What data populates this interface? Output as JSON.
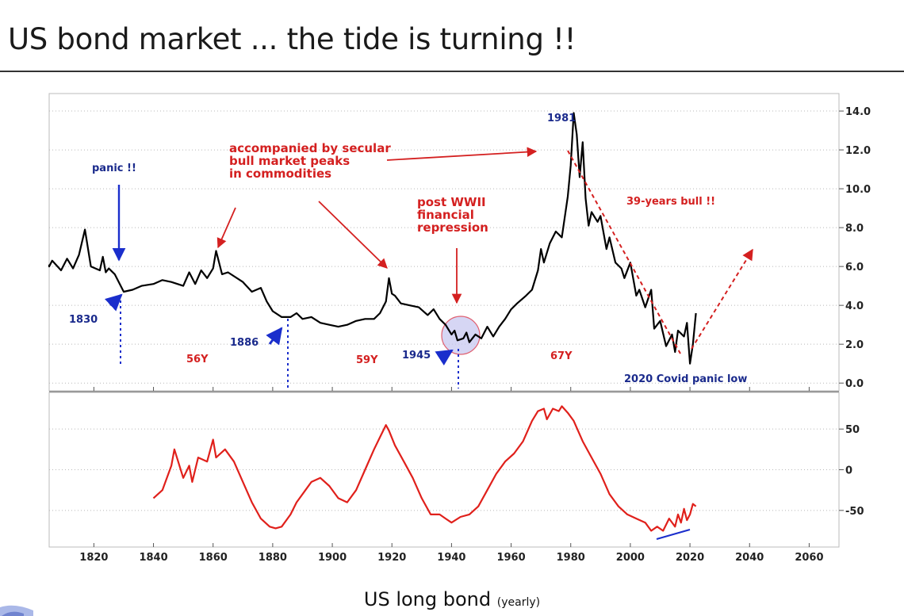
{
  "title": "US bond market ... the tide is turning !!",
  "caption": {
    "main": "US long bond",
    "sub": "(yearly)"
  },
  "colors": {
    "price_line": "#000000",
    "osc_line": "#e0201b",
    "blue": "#1a2ecc",
    "annotation_blue": "#1a2a8c",
    "annotation_red": "#d42020",
    "grid": "#b8b8b8",
    "highlight": "#c8c8f0"
  },
  "chart_data": [
    {
      "type": "line",
      "title": "",
      "xlim": [
        1805,
        2070
      ],
      "ylim": [
        -0.4,
        14.9
      ],
      "y_ticks": [
        "0.0",
        "2.0",
        "4.0",
        "6.0",
        "8.0",
        "10.0",
        "12.0",
        "14.0"
      ],
      "grid": true,
      "series": [
        {
          "x": [
            1800,
            1803,
            1806,
            1809,
            1811,
            1813,
            1815,
            1817,
            1819,
            1822,
            1823,
            1824,
            1825,
            1827,
            1830,
            1833,
            1836,
            1840,
            1843,
            1846,
            1850,
            1852,
            1854,
            1856,
            1858,
            1860,
            1861,
            1863,
            1865,
            1870,
            1873,
            1876,
            1878,
            1880,
            1883,
            1886,
            1888,
            1890,
            1893,
            1896,
            1899,
            1902,
            1905,
            1908,
            1911,
            1914,
            1916,
            1918,
            1919,
            1920,
            1921,
            1923,
            1926,
            1929,
            1932,
            1934,
            1936,
            1938,
            1940,
            1941,
            1942,
            1944,
            1945,
            1946,
            1948,
            1950,
            1952,
            1954,
            1956,
            1958,
            1960,
            1962,
            1965,
            1967,
            1969,
            1970,
            1971,
            1973,
            1975,
            1977,
            1979,
            1980,
            1981,
            1982,
            1983,
            1984,
            1985,
            1986,
            1987,
            1989,
            1990,
            1992,
            1993,
            1995,
            1997,
            1998,
            2000,
            2002,
            2003,
            2005,
            2007,
            2008,
            2010,
            2012,
            2014,
            2015,
            2016,
            2018,
            2019,
            2020,
            2021,
            2022
          ],
          "values": [
            6.1,
            6.0,
            6.3,
            5.8,
            6.4,
            5.9,
            6.6,
            7.9,
            6.0,
            5.8,
            6.5,
            5.7,
            5.9,
            5.6,
            4.7,
            4.8,
            5.0,
            5.1,
            5.3,
            5.2,
            5.0,
            5.7,
            5.1,
            5.8,
            5.4,
            5.9,
            6.8,
            5.6,
            5.7,
            5.2,
            4.7,
            4.9,
            4.2,
            3.7,
            3.4,
            3.4,
            3.6,
            3.3,
            3.4,
            3.1,
            3.0,
            2.9,
            3.0,
            3.2,
            3.3,
            3.3,
            3.6,
            4.2,
            5.4,
            4.6,
            4.5,
            4.1,
            4.0,
            3.9,
            3.5,
            3.8,
            3.3,
            3.0,
            2.5,
            2.7,
            2.2,
            2.3,
            2.6,
            2.1,
            2.5,
            2.3,
            2.9,
            2.4,
            2.9,
            3.3,
            3.8,
            4.1,
            4.5,
            4.8,
            5.8,
            6.9,
            6.2,
            7.2,
            7.8,
            7.5,
            9.6,
            11.2,
            13.9,
            12.8,
            10.6,
            12.4,
            9.5,
            8.1,
            8.8,
            8.3,
            8.6,
            6.9,
            7.5,
            6.2,
            5.9,
            5.4,
            6.2,
            4.5,
            4.8,
            3.9,
            4.8,
            2.8,
            3.2,
            1.9,
            2.5,
            1.6,
            2.7,
            2.4,
            3.1,
            1.0,
            2.0,
            3.6
          ]
        }
      ]
    },
    {
      "type": "line",
      "title": "",
      "xlim": [
        1805,
        2070
      ],
      "ylim": [
        -95,
        95
      ],
      "y_ticks": [
        "50",
        "0",
        "-50"
      ],
      "x_ticks": [
        "1820",
        "1840",
        "1860",
        "1880",
        "1900",
        "1920",
        "1940",
        "1960",
        "1980",
        "2000",
        "2020",
        "2040",
        "2060"
      ],
      "grid": true,
      "series": [
        {
          "x": [
            1840,
            1843,
            1846,
            1847,
            1850,
            1852,
            1853,
            1855,
            1858,
            1860,
            1861,
            1864,
            1867,
            1870,
            1873,
            1876,
            1879,
            1881,
            1883,
            1886,
            1888,
            1891,
            1893,
            1896,
            1899,
            1902,
            1905,
            1908,
            1911,
            1914,
            1916,
            1918,
            1919,
            1921,
            1924,
            1927,
            1930,
            1933,
            1936,
            1938,
            1940,
            1943,
            1946,
            1949,
            1952,
            1955,
            1958,
            1961,
            1964,
            1967,
            1969,
            1971,
            1972,
            1974,
            1976,
            1977,
            1979,
            1981,
            1984,
            1987,
            1990,
            1993,
            1996,
            1999,
            2002,
            2005,
            2007,
            2009,
            2011,
            2013,
            2015,
            2016,
            2017,
            2018,
            2019,
            2020,
            2021,
            2022
          ],
          "values": [
            -35,
            -25,
            5,
            25,
            -10,
            5,
            -15,
            15,
            10,
            37,
            15,
            25,
            10,
            -15,
            -40,
            -60,
            -70,
            -72,
            -70,
            -55,
            -40,
            -25,
            -15,
            -10,
            -20,
            -35,
            -40,
            -25,
            0,
            25,
            40,
            55,
            48,
            30,
            10,
            -10,
            -35,
            -55,
            -55,
            -60,
            -65,
            -58,
            -55,
            -45,
            -25,
            -5,
            10,
            20,
            35,
            60,
            72,
            75,
            62,
            75,
            72,
            78,
            70,
            60,
            35,
            15,
            -5,
            -30,
            -45,
            -55,
            -60,
            -65,
            -75,
            -70,
            -75,
            -60,
            -70,
            -55,
            -65,
            -48,
            -62,
            -55,
            -42,
            -45
          ]
        }
      ]
    }
  ],
  "annotations": {
    "panic": "panic !!",
    "y1830": "1830",
    "y56": "56Y",
    "commodities_1": "accompanied by secular",
    "commodities_2": "bull market peaks",
    "commodities_3": "in commodities",
    "y1886": "1886",
    "y59": "59Y",
    "y1945": "1945",
    "post_1": "post WWII",
    "post_2": "financial",
    "post_3": "repression",
    "y1981": "1981",
    "y67": "67Y",
    "bull39": "39-years bull !!",
    "covid": "2020 Covid panic low"
  }
}
